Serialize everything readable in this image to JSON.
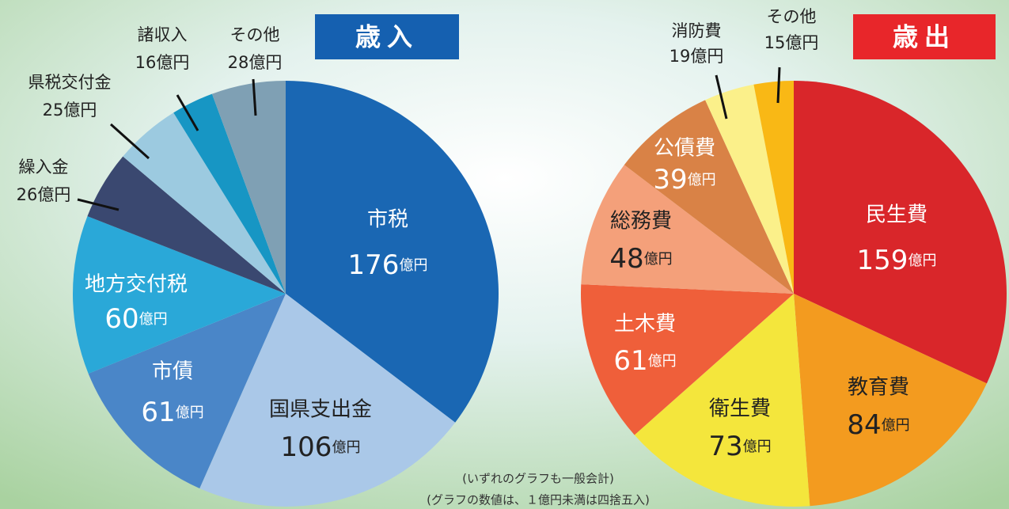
{
  "chart_data": [
    {
      "type": "pie",
      "title": "歳入",
      "title_color": "#1560b0",
      "categories": [
        "市税",
        "国県支出金",
        "市債",
        "地方交付税",
        "繰入金",
        "県税交付金",
        "諸収入",
        "その他"
      ],
      "values": [
        176,
        106,
        61,
        60,
        26,
        25,
        16,
        28
      ],
      "value_labels": [
        "176億円",
        "106億円",
        "61億円",
        "60億円",
        "26億円",
        "25億円",
        "16億円",
        "28億円"
      ],
      "colors": [
        "#1a67b3",
        "#aac8e8",
        "#4a86c8",
        "#2aa8d8",
        "#3a4870",
        "#9ccae0",
        "#1796c4",
        "#7fa0b4"
      ]
    },
    {
      "type": "pie",
      "title": "歳出",
      "title_color": "#e8262a",
      "categories": [
        "民生費",
        "教育費",
        "衛生費",
        "土木費",
        "総務費",
        "公債費",
        "消防費",
        "その他"
      ],
      "values": [
        159,
        84,
        73,
        61,
        48,
        39,
        19,
        15
      ],
      "value_labels": [
        "159億円",
        "84億円",
        "73億円",
        "61億円",
        "48億円",
        "39億円",
        "19億円",
        "15億円"
      ],
      "colors": [
        "#d9262a",
        "#f39b1f",
        "#f4e63c",
        "#ef5f3a",
        "#f4a07a",
        "#d98246",
        "#fbf08a",
        "#f9b815"
      ]
    }
  ],
  "notes": [
    "(いずれのグラフも一般会計)",
    "(グラフの数値は、１億円未満は四捨五入)"
  ]
}
